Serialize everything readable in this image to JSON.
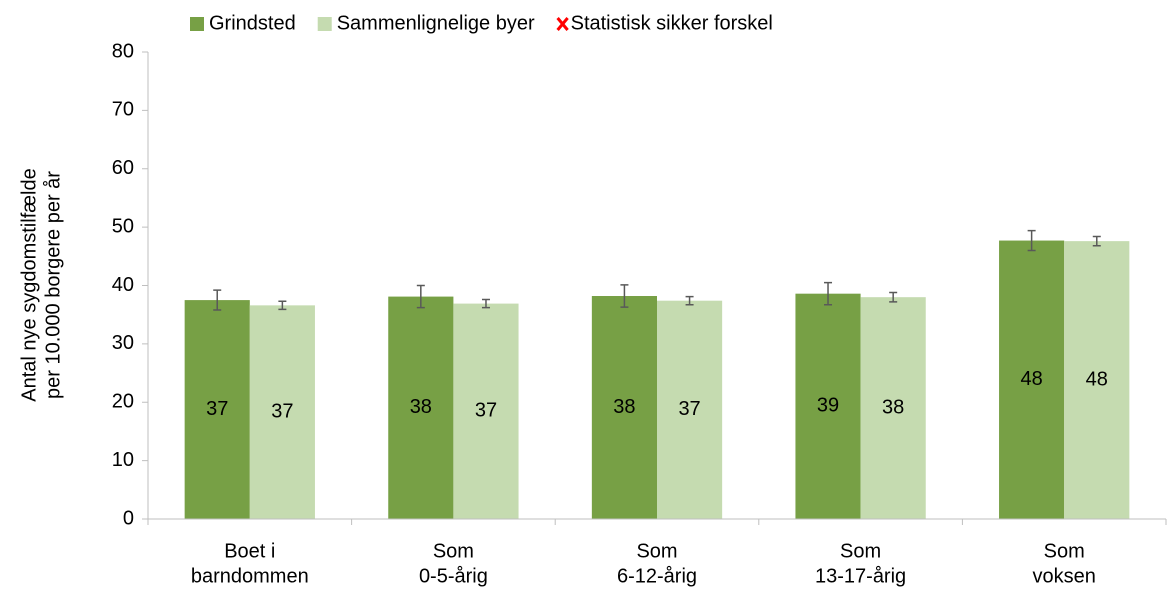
{
  "chart_data": {
    "type": "bar",
    "y_label": [
      "Antal nye sygdomstilfælde",
      "per 10.000 borgere per år"
    ],
    "categories": [
      [
        "Boet i",
        "barndommen"
      ],
      [
        "Som",
        "0-5-årig"
      ],
      [
        "Som",
        "6-12-årig"
      ],
      [
        "Som",
        "13-17-årig"
      ],
      [
        "Som",
        "voksen"
      ]
    ],
    "series": [
      {
        "name": "Grindsted",
        "color": "#77a045",
        "values": [
          37.5,
          38.1,
          38.2,
          38.6,
          47.7
        ],
        "errors": [
          1.7,
          1.9,
          1.9,
          1.9,
          1.7
        ],
        "value_labels": [
          "37",
          "38",
          "38",
          "39",
          "48"
        ]
      },
      {
        "name": "Sammenlignelige byer",
        "color": "#c5dbb0",
        "values": [
          36.6,
          36.9,
          37.4,
          38.0,
          47.6
        ],
        "errors": [
          0.7,
          0.7,
          0.7,
          0.8,
          0.8
        ],
        "value_labels": [
          "37",
          "37",
          "37",
          "38",
          "48"
        ]
      }
    ],
    "legend_extra": {
      "name": "Statistisk sikker forskel",
      "color": "#ff0000"
    },
    "error_color": "#595959",
    "ylim": [
      0,
      80
    ],
    "yticks": [
      0,
      10,
      20,
      30,
      40,
      50,
      60,
      70,
      80
    ],
    "grid": false
  }
}
